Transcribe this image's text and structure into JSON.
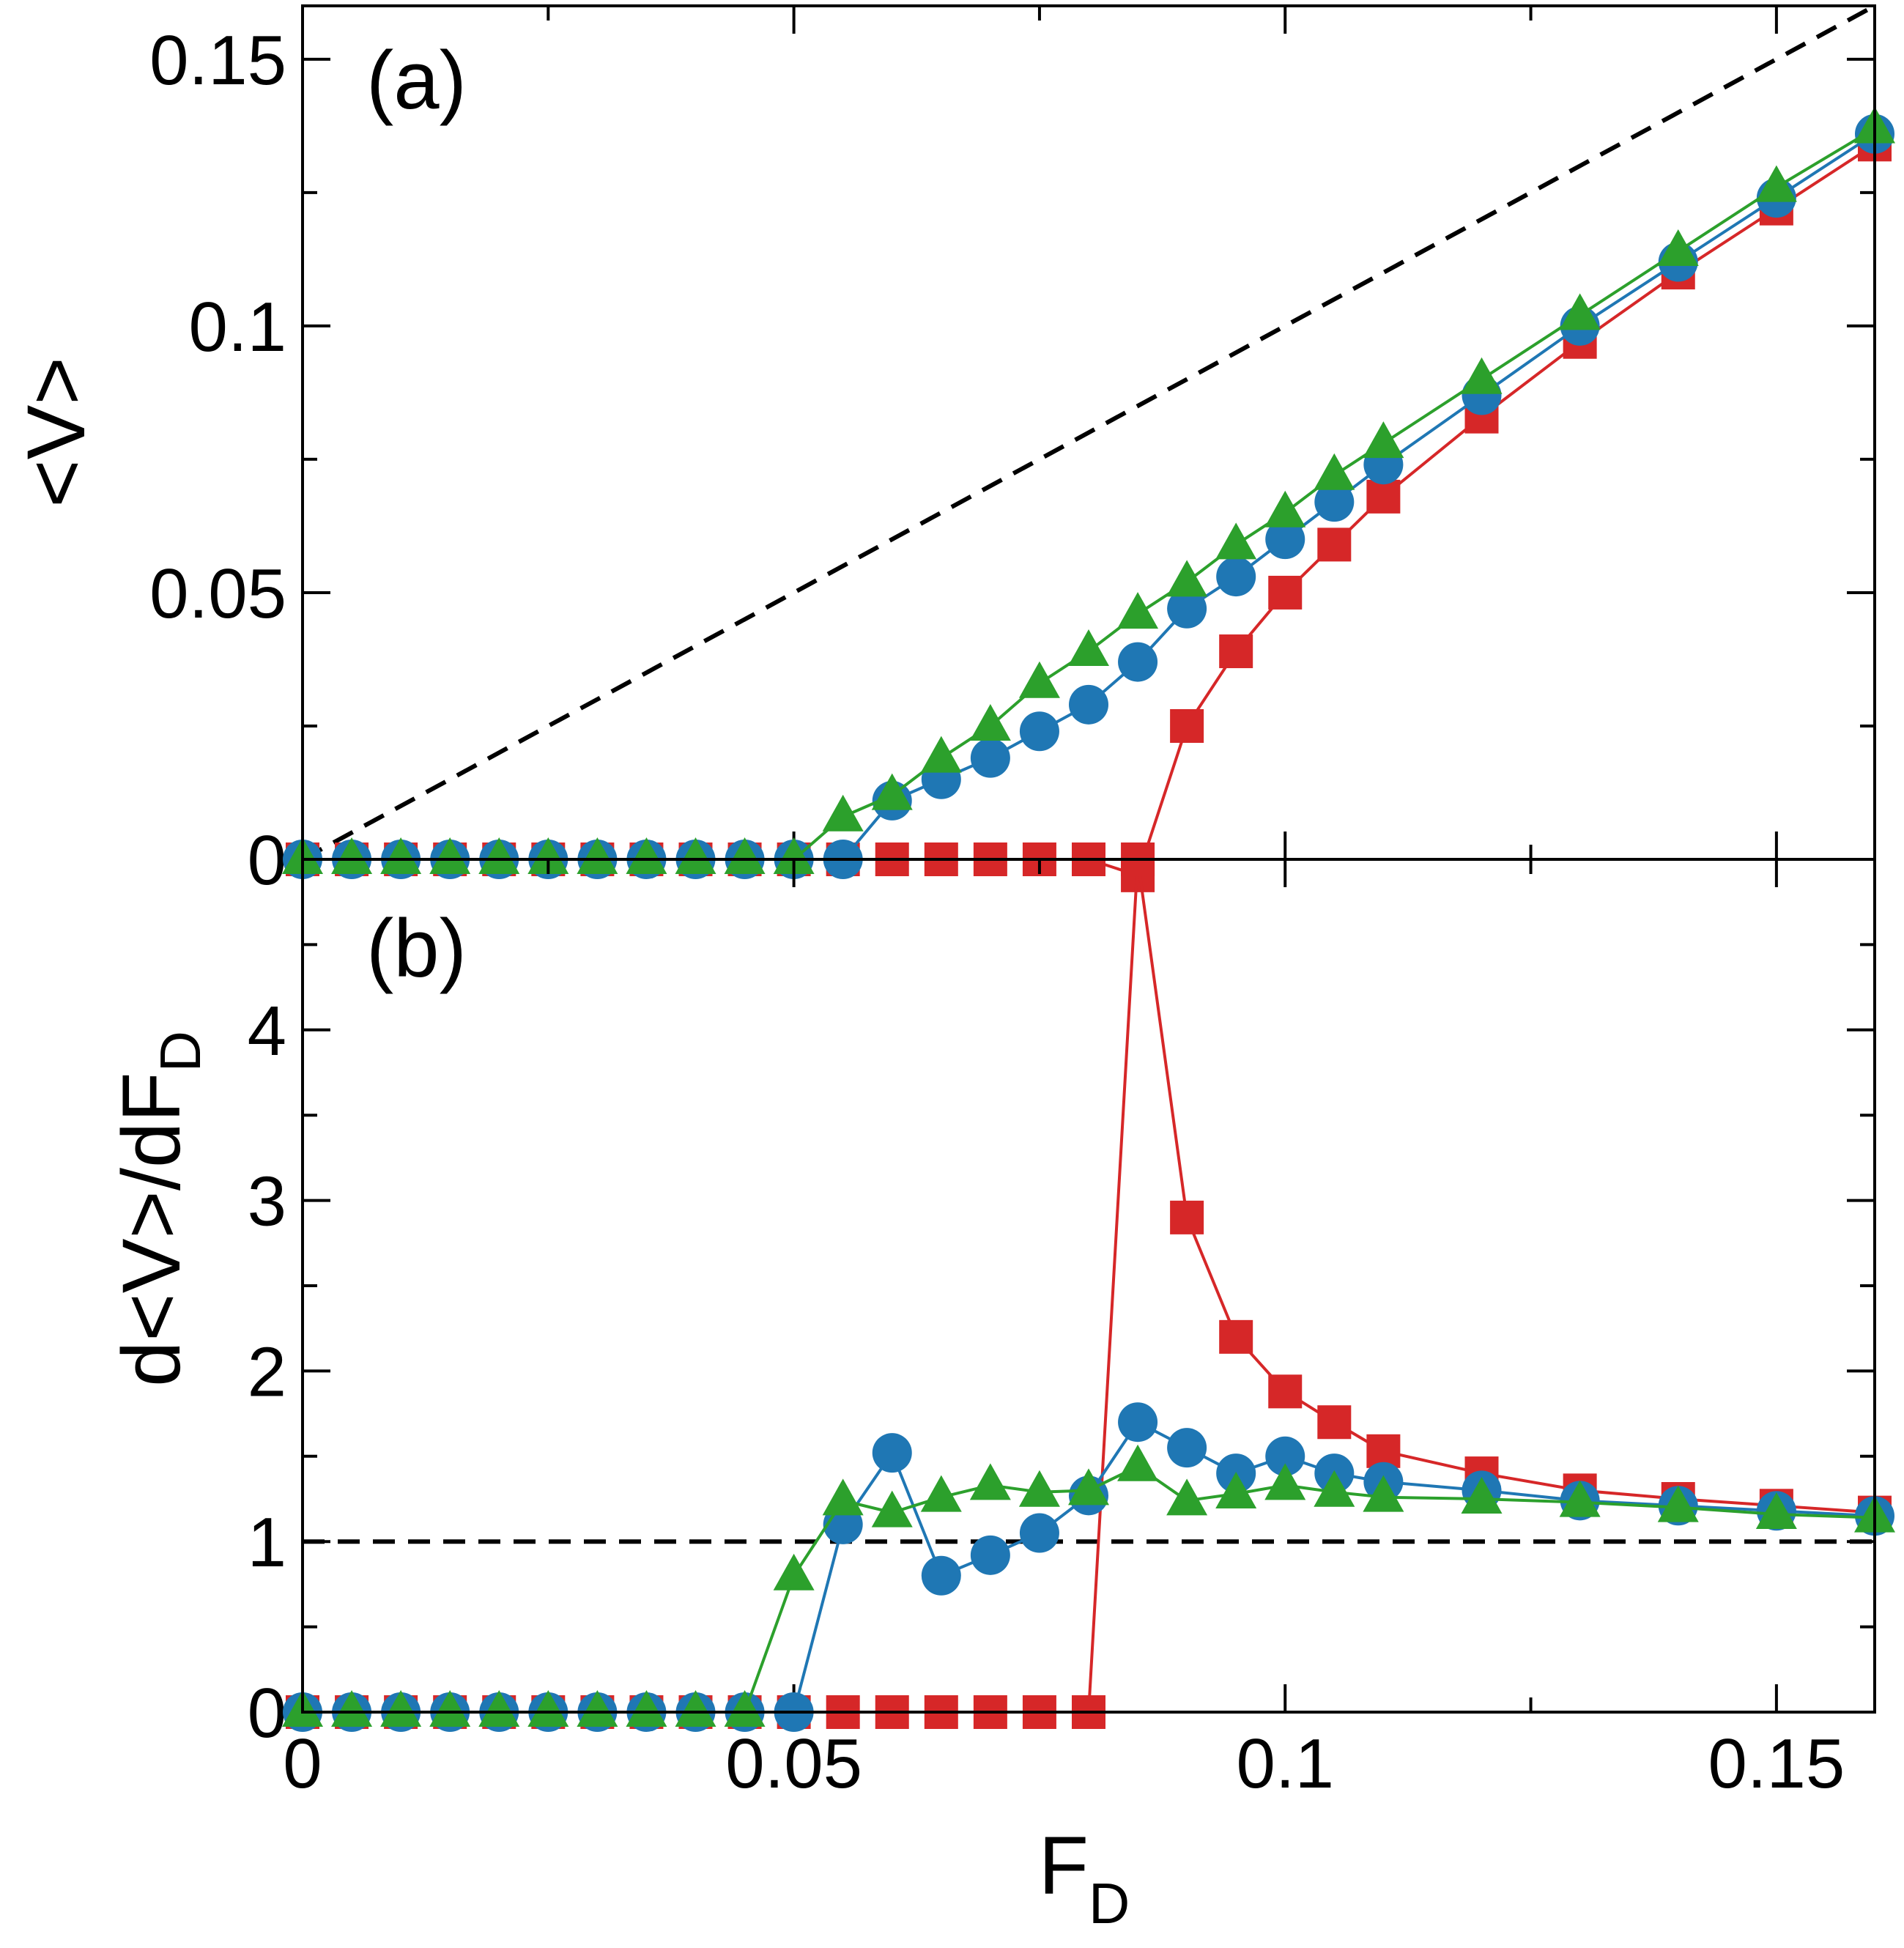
{
  "chart_data": [
    {
      "panel_label": "(a)",
      "type": "line",
      "ylabel": "<V>",
      "xlim": [
        0,
        0.16
      ],
      "ylim": [
        0,
        0.16
      ],
      "yticks": [
        0,
        0.05,
        0.1,
        0.15
      ],
      "ytick_labels": [
        "0",
        "0.05",
        "0.1",
        "0.15"
      ],
      "reference_line": {
        "style": "dashed",
        "color": "#000000",
        "x": [
          0,
          0.16
        ],
        "y": [
          0,
          0.16
        ]
      },
      "series": [
        {
          "name": "square",
          "marker": "square",
          "color": "#d62728",
          "x": [
            0,
            0.005,
            0.01,
            0.015,
            0.02,
            0.025,
            0.03,
            0.035,
            0.04,
            0.045,
            0.05,
            0.055,
            0.06,
            0.065,
            0.07,
            0.075,
            0.08,
            0.085,
            0.09,
            0.095,
            0.1,
            0.105,
            0.11,
            0.12,
            0.13,
            0.14,
            0.15,
            0.16
          ],
          "y": [
            0,
            0,
            0,
            0,
            0,
            0,
            0,
            0,
            0,
            0,
            0,
            0,
            0,
            0,
            0,
            0,
            0,
            -0.003,
            0.025,
            0.039,
            0.05,
            0.059,
            0.068,
            0.083,
            0.097,
            0.11,
            0.122,
            0.134
          ]
        },
        {
          "name": "circle",
          "marker": "circle",
          "color": "#1f77b4",
          "x": [
            0,
            0.005,
            0.01,
            0.015,
            0.02,
            0.025,
            0.03,
            0.035,
            0.04,
            0.045,
            0.05,
            0.055,
            0.06,
            0.065,
            0.07,
            0.075,
            0.08,
            0.085,
            0.09,
            0.095,
            0.1,
            0.105,
            0.11,
            0.12,
            0.13,
            0.14,
            0.15,
            0.16
          ],
          "y": [
            0,
            0,
            0,
            0,
            0,
            0,
            0,
            0,
            0,
            0,
            0,
            0,
            0.011,
            0.015,
            0.019,
            0.024,
            0.029,
            0.037,
            0.047,
            0.053,
            0.06,
            0.067,
            0.074,
            0.087,
            0.1,
            0.112,
            0.124,
            0.136
          ]
        },
        {
          "name": "triangle",
          "marker": "triangle",
          "color": "#2ca02c",
          "x": [
            0,
            0.005,
            0.01,
            0.015,
            0.02,
            0.025,
            0.03,
            0.035,
            0.04,
            0.045,
            0.05,
            0.055,
            0.06,
            0.065,
            0.07,
            0.075,
            0.08,
            0.085,
            0.09,
            0.095,
            0.1,
            0.105,
            0.11,
            0.12,
            0.13,
            0.14,
            0.15,
            0.16
          ],
          "y": [
            0,
            0,
            0,
            0,
            0,
            0,
            0,
            0,
            0,
            0,
            0,
            0.008,
            0.012,
            0.019,
            0.025,
            0.033,
            0.039,
            0.046,
            0.052,
            0.059,
            0.065,
            0.072,
            0.078,
            0.09,
            0.102,
            0.114,
            0.126,
            0.137
          ]
        }
      ]
    },
    {
      "panel_label": "(b)",
      "type": "line",
      "ylabel": "d<V>/dF",
      "ylabel_subscript": "D",
      "xlabel": "F",
      "xlabel_subscript": "D",
      "xlim": [
        0,
        0.16
      ],
      "ylim": [
        0,
        5
      ],
      "yticks": [
        0,
        1,
        2,
        3,
        4
      ],
      "ytick_labels": [
        "0",
        "1",
        "2",
        "3",
        "4"
      ],
      "xticks": [
        0,
        0.05,
        0.1,
        0.15
      ],
      "xtick_labels": [
        "0",
        "0.05",
        "0.1",
        "0.15"
      ],
      "reference_line": {
        "style": "dashed",
        "color": "#000000",
        "x": [
          0,
          0.16
        ],
        "y": [
          1,
          1
        ]
      },
      "series": [
        {
          "name": "square",
          "marker": "square",
          "color": "#d62728",
          "x": [
            0,
            0.005,
            0.01,
            0.015,
            0.02,
            0.025,
            0.03,
            0.035,
            0.04,
            0.045,
            0.05,
            0.055,
            0.06,
            0.065,
            0.07,
            0.075,
            0.08,
            0.085,
            0.09,
            0.095,
            0.1,
            0.105,
            0.11,
            0.12,
            0.13,
            0.14,
            0.15,
            0.16
          ],
          "y": [
            0,
            0,
            0,
            0,
            0,
            0,
            0,
            0,
            0,
            0,
            0,
            0,
            0,
            0,
            0,
            0,
            0,
            5.0,
            2.9,
            2.2,
            1.88,
            1.7,
            1.53,
            1.4,
            1.3,
            1.25,
            1.21,
            1.17
          ]
        },
        {
          "name": "circle",
          "marker": "circle",
          "color": "#1f77b4",
          "x": [
            0,
            0.005,
            0.01,
            0.015,
            0.02,
            0.025,
            0.03,
            0.035,
            0.04,
            0.045,
            0.05,
            0.055,
            0.06,
            0.065,
            0.07,
            0.075,
            0.08,
            0.085,
            0.09,
            0.095,
            0.1,
            0.105,
            0.11,
            0.12,
            0.13,
            0.14,
            0.15,
            0.16
          ],
          "y": [
            0,
            0,
            0,
            0,
            0,
            0,
            0,
            0,
            0,
            0,
            0,
            1.1,
            1.52,
            0.8,
            0.92,
            1.05,
            1.27,
            1.7,
            1.55,
            1.4,
            1.5,
            1.4,
            1.35,
            1.3,
            1.24,
            1.21,
            1.18,
            1.15
          ]
        },
        {
          "name": "triangle",
          "marker": "triangle",
          "color": "#2ca02c",
          "x": [
            0,
            0.005,
            0.01,
            0.015,
            0.02,
            0.025,
            0.03,
            0.035,
            0.04,
            0.045,
            0.05,
            0.055,
            0.06,
            0.065,
            0.07,
            0.075,
            0.08,
            0.085,
            0.09,
            0.095,
            0.1,
            0.105,
            0.11,
            0.12,
            0.13,
            0.14,
            0.15,
            0.16
          ],
          "y": [
            0,
            0,
            0,
            0,
            0,
            0,
            0,
            0,
            0,
            0,
            0.8,
            1.24,
            1.17,
            1.26,
            1.33,
            1.29,
            1.3,
            1.44,
            1.24,
            1.28,
            1.33,
            1.29,
            1.26,
            1.25,
            1.23,
            1.2,
            1.16,
            1.14
          ]
        }
      ]
    }
  ]
}
